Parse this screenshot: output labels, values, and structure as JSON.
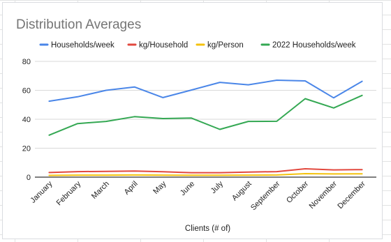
{
  "chart_data": {
    "type": "line",
    "title": "Distribution Averages",
    "xlabel": "Clients (# of)",
    "ylabel": "",
    "categories": [
      "January",
      "February",
      "March",
      "April",
      "May",
      "June",
      "July",
      "August",
      "September",
      "October",
      "November",
      "December"
    ],
    "ylim": [
      0,
      80
    ],
    "yticks": [
      0,
      20,
      40,
      60,
      80
    ],
    "grid": true,
    "legend_position": "top",
    "series": [
      {
        "name": "Households/week",
        "color": "#4a86e8",
        "values": [
          52.5,
          55.5,
          60,
          62.3,
          55,
          60.2,
          65.5,
          63.8,
          67,
          66.5,
          54.8,
          66.2
        ]
      },
      {
        "name": "kg/Household",
        "color": "#e2483e",
        "values": [
          3.2,
          3.8,
          4,
          4.2,
          3.7,
          3.1,
          3.1,
          3.5,
          3.8,
          5.8,
          5.0,
          5.2
        ]
      },
      {
        "name": "kg/Person",
        "color": "#f4c20d",
        "values": [
          1.2,
          1.4,
          1.4,
          1.5,
          1.4,
          1.3,
          1.3,
          1.4,
          1.5,
          2.4,
          2.2,
          2.3
        ]
      },
      {
        "name": "2022 Households/week",
        "color": "#34a853",
        "values": [
          29,
          37,
          38.5,
          41.8,
          40.5,
          40.8,
          33,
          38.5,
          38.6,
          54.2,
          47.8,
          56.5
        ]
      }
    ]
  }
}
